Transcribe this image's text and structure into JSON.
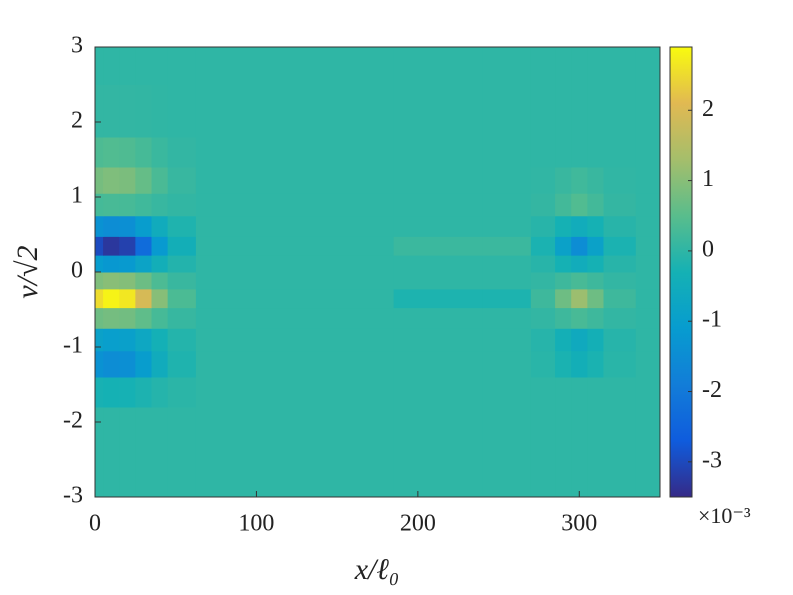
{
  "chart_data": {
    "type": "heatmap",
    "x_label": "x/ℓ₀",
    "y_label": "v/√2",
    "colorbar_exponent": "×10⁻³",
    "x": [
      0,
      10,
      20,
      30,
      40,
      50,
      75,
      150,
      220,
      260,
      280,
      290,
      300,
      310,
      320,
      350
    ],
    "y": [
      -3,
      -2,
      -1.6,
      -1.2,
      -0.9,
      -0.6,
      -0.35,
      -0.1,
      0.1,
      0.35,
      0.6,
      0.9,
      1.2,
      1.6,
      2,
      3
    ],
    "z": [
      [
        0,
        0,
        0,
        0,
        0,
        0,
        0,
        0,
        0,
        0,
        0,
        0,
        0,
        0,
        0,
        0
      ],
      [
        0,
        0,
        0,
        0,
        0,
        0,
        0,
        0,
        0,
        0,
        0,
        0,
        0,
        0,
        0,
        0
      ],
      [
        -0.27,
        -0.3,
        -0.29,
        -0.21,
        -0.11,
        -0.04,
        0,
        0,
        0,
        0,
        0,
        0,
        0,
        0,
        0,
        0
      ],
      [
        -1.35,
        -1.5,
        -1.43,
        -1.05,
        -0.53,
        -0.18,
        0,
        0,
        0,
        0,
        -0.06,
        -0.24,
        -0.4,
        -0.24,
        -0.06,
        0
      ],
      [
        -0.9,
        -1,
        -0.95,
        -0.7,
        -0.35,
        -0.12,
        0,
        0,
        0,
        0,
        -0.09,
        -0.36,
        -0.6,
        -0.36,
        -0.09,
        0
      ],
      [
        0.72,
        0.8,
        0.76,
        0.56,
        0.28,
        0.1,
        0,
        0,
        0,
        0,
        0.05,
        0.18,
        0.3,
        0.18,
        0.05,
        0
      ],
      [
        2.52,
        2.8,
        2.66,
        1.96,
        0.98,
        0.34,
        0,
        0,
        -0.2,
        -0.2,
        0.18,
        0.72,
        1.2,
        0.72,
        0.18,
        0
      ],
      [
        0.9,
        1,
        0.95,
        0.7,
        0.35,
        0.12,
        0,
        0,
        0,
        0,
        0.05,
        0.18,
        0.3,
        0.18,
        0.05,
        0
      ],
      [
        -1.08,
        -1.2,
        -1.14,
        -0.84,
        -0.42,
        -0.14,
        0,
        0,
        0,
        0,
        -0.08,
        -0.3,
        -0.5,
        -0.3,
        -0.08,
        0
      ],
      [
        -2.97,
        -3.3,
        -3.14,
        -2.31,
        -1.16,
        -0.4,
        0,
        0,
        0.15,
        0.15,
        -0.23,
        -0.9,
        -1.5,
        -0.9,
        -0.23,
        0
      ],
      [
        -1.35,
        -1.5,
        -1.43,
        -1.05,
        -0.53,
        -0.18,
        0,
        0,
        0,
        0,
        -0.08,
        -0.3,
        -0.5,
        -0.3,
        -0.08,
        0
      ],
      [
        0.27,
        0.3,
        0.29,
        0.21,
        0.11,
        0.04,
        0,
        0,
        0,
        0,
        0.06,
        0.24,
        0.4,
        0.24,
        0.06,
        0
      ],
      [
        0.81,
        0.9,
        0.86,
        0.63,
        0.32,
        0.11,
        0,
        0,
        0,
        0,
        0.03,
        0.12,
        0.2,
        0.12,
        0.03,
        0
      ],
      [
        0.36,
        0.4,
        0.38,
        0.28,
        0.14,
        0.05,
        0,
        0,
        0,
        0,
        0,
        0,
        0,
        0,
        0,
        0
      ],
      [
        0.05,
        0.05,
        0.05,
        0.04,
        0.02,
        0,
        0,
        0,
        0,
        0,
        0,
        0,
        0,
        0,
        0,
        0
      ],
      [
        0,
        0,
        0,
        0,
        0,
        0,
        0,
        0,
        0,
        0,
        0,
        0,
        0,
        0,
        0,
        0
      ]
    ],
    "xlim": [
      0,
      350
    ],
    "ylim": [
      -3,
      3
    ],
    "xticks": [
      0,
      100,
      200,
      300
    ],
    "yticks": [
      -3,
      -2,
      -1,
      0,
      1,
      2,
      3
    ],
    "clim": [
      -3.5,
      2.9
    ],
    "cticks": [
      -3,
      -2,
      -1,
      0,
      1,
      2
    ],
    "colormap": [
      "#352a87",
      "#0f5cdd",
      "#127dd8",
      "#079ccf",
      "#15b1b4",
      "#59bd8c",
      "#a5be6b",
      "#e1b952",
      "#f9fb0e"
    ]
  }
}
